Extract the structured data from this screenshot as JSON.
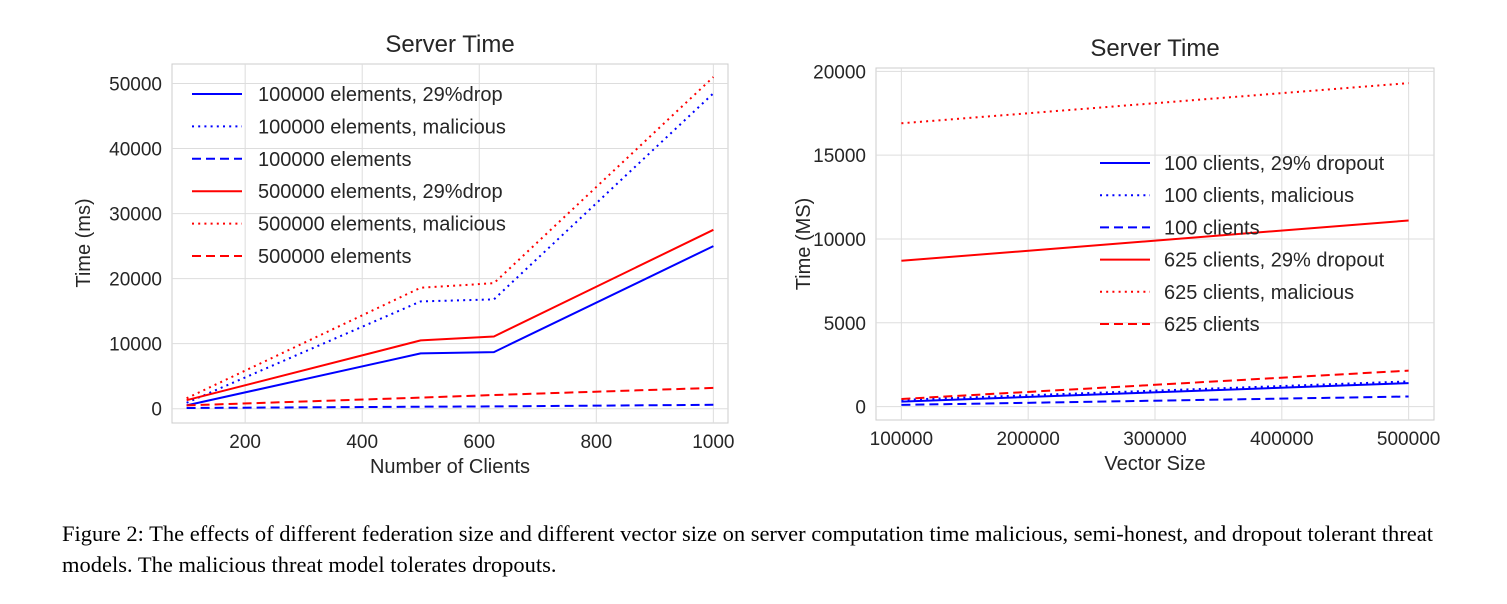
{
  "chart_data": [
    {
      "type": "line",
      "title": "Server Time",
      "xlabel": "Number of Clients",
      "ylabel": "Time (ms)",
      "xlim": [
        75,
        1025
      ],
      "ylim": [
        -2200,
        53000
      ],
      "xticks": [
        200,
        400,
        600,
        800,
        1000
      ],
      "yticks": [
        0,
        10000,
        20000,
        30000,
        40000,
        50000
      ],
      "grid": true,
      "legend_placement": "top-left",
      "series": [
        {
          "name": "100000 elements, 29%drop",
          "color": "#0000ff",
          "style": "solid",
          "x": [
            100,
            500,
            625,
            1000
          ],
          "y": [
            500,
            8500,
            8700,
            25000
          ]
        },
        {
          "name": "100000 elements, malicious",
          "color": "#0000ff",
          "style": "dotted",
          "x": [
            100,
            500,
            625,
            1000
          ],
          "y": [
            900,
            16500,
            16800,
            48500
          ]
        },
        {
          "name": "100000 elements",
          "color": "#0000ff",
          "style": "dashed",
          "x": [
            100,
            500,
            625,
            1000
          ],
          "y": [
            100,
            300,
            350,
            600
          ]
        },
        {
          "name": "500000 elements, 29%drop",
          "color": "#ff0000",
          "style": "solid",
          "x": [
            100,
            500,
            625,
            1000
          ],
          "y": [
            1300,
            10500,
            11100,
            27500
          ]
        },
        {
          "name": "500000 elements, malicious",
          "color": "#ff0000",
          "style": "dotted",
          "x": [
            100,
            500,
            625,
            1000
          ],
          "y": [
            1600,
            18600,
            19300,
            51000
          ]
        },
        {
          "name": "500000 elements",
          "color": "#ff0000",
          "style": "dashed",
          "x": [
            100,
            500,
            625,
            1000
          ],
          "y": [
            500,
            1700,
            2100,
            3200
          ]
        }
      ]
    },
    {
      "type": "line",
      "title": "Server Time",
      "xlabel": "Vector Size",
      "ylabel": "Time (MS)",
      "xlim": [
        80000,
        520000
      ],
      "ylim": [
        -800,
        20200
      ],
      "xticks": [
        100000,
        200000,
        300000,
        400000,
        500000
      ],
      "yticks": [
        0,
        5000,
        10000,
        15000,
        20000
      ],
      "grid": true,
      "legend_placement": "center-right",
      "series": [
        {
          "name": "100 clients, 29% dropout",
          "color": "#0000ff",
          "style": "solid",
          "x": [
            100000,
            500000
          ],
          "y": [
            300,
            1400
          ]
        },
        {
          "name": "100 clients, malicious",
          "color": "#0000ff",
          "style": "dotted",
          "x": [
            100000,
            500000
          ],
          "y": [
            400,
            1500
          ]
        },
        {
          "name": "100 clients",
          "color": "#0000ff",
          "style": "dashed",
          "x": [
            100000,
            500000
          ],
          "y": [
            100,
            600
          ]
        },
        {
          "name": "625 clients, 29% dropout",
          "color": "#ff0000",
          "style": "solid",
          "x": [
            100000,
            500000
          ],
          "y": [
            8700,
            11100
          ]
        },
        {
          "name": "625 clients, malicious",
          "color": "#ff0000",
          "style": "dotted",
          "x": [
            100000,
            500000
          ],
          "y": [
            16900,
            19300
          ]
        },
        {
          "name": "625 clients",
          "color": "#ff0000",
          "style": "dashed",
          "x": [
            100000,
            500000
          ],
          "y": [
            450,
            2150
          ]
        }
      ]
    }
  ],
  "caption": "Figure 2: The effects of different federation size and different vector size on server computation time malicious, semi-honest, and dropout tolerant threat models. The malicious threat model tolerates dropouts."
}
